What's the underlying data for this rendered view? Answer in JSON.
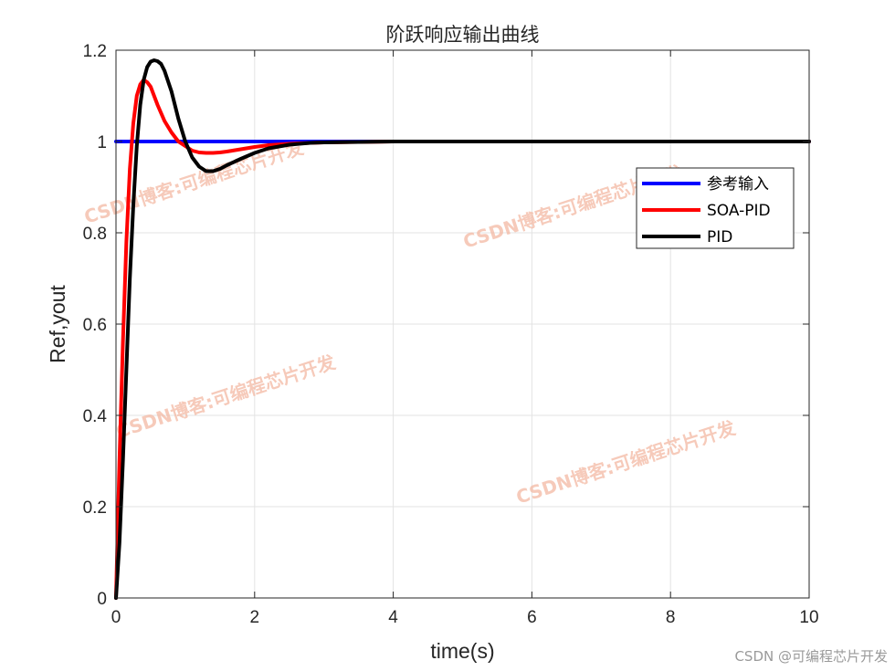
{
  "chart_data": {
    "type": "line",
    "title": "阶跃响应输出曲线",
    "xlabel": "time(s)",
    "ylabel": "Ref,yout",
    "xlim": [
      0,
      10
    ],
    "ylim": [
      0,
      1.2
    ],
    "xticks": [
      "0",
      "2",
      "4",
      "6",
      "8",
      "10"
    ],
    "yticks": [
      "0",
      "0.2",
      "0.4",
      "0.6",
      "0.8",
      "1",
      "1.2"
    ],
    "grid": true,
    "legend_position": "top-right",
    "series": [
      {
        "name": "参考输入",
        "color": "#0000ff",
        "x": [
          0,
          10
        ],
        "y": [
          1,
          1
        ]
      },
      {
        "name": "SOA-PID",
        "color": "#ff0000",
        "x": [
          0,
          0.05,
          0.1,
          0.15,
          0.2,
          0.25,
          0.3,
          0.35,
          0.4,
          0.45,
          0.5,
          0.55,
          0.6,
          0.7,
          0.8,
          0.9,
          1.0,
          1.1,
          1.2,
          1.3,
          1.4,
          1.5,
          1.6,
          1.8,
          2.0,
          2.2,
          2.5,
          2.8,
          3.0,
          3.5,
          4.0,
          5.0,
          6.0,
          7.0,
          8.0,
          9.0,
          10.0
        ],
        "y": [
          0,
          0.3,
          0.56,
          0.78,
          0.94,
          1.04,
          1.1,
          1.125,
          1.135,
          1.13,
          1.12,
          1.1,
          1.08,
          1.045,
          1.02,
          1.0,
          0.99,
          0.98,
          0.976,
          0.975,
          0.975,
          0.976,
          0.978,
          0.983,
          0.988,
          0.992,
          0.995,
          0.997,
          0.998,
          0.999,
          1.0,
          1.0,
          1.0,
          1.0,
          1.0,
          1.0,
          1.0
        ]
      },
      {
        "name": "PID",
        "color": "#000000",
        "x": [
          0,
          0.05,
          0.1,
          0.15,
          0.2,
          0.25,
          0.3,
          0.35,
          0.4,
          0.45,
          0.5,
          0.55,
          0.6,
          0.65,
          0.7,
          0.8,
          0.9,
          1.0,
          1.1,
          1.2,
          1.3,
          1.4,
          1.5,
          1.6,
          1.8,
          2.0,
          2.2,
          2.5,
          2.8,
          3.0,
          3.5,
          4.0,
          5.0,
          6.0,
          7.0,
          8.0,
          9.0,
          10.0
        ],
        "y": [
          0,
          0.12,
          0.3,
          0.5,
          0.7,
          0.86,
          0.99,
          1.08,
          1.135,
          1.163,
          1.175,
          1.178,
          1.176,
          1.17,
          1.155,
          1.11,
          1.05,
          1.0,
          0.965,
          0.945,
          0.935,
          0.935,
          0.94,
          0.948,
          0.962,
          0.975,
          0.985,
          0.993,
          0.997,
          0.998,
          0.999,
          1.0,
          1.0,
          1.0,
          1.0,
          1.0,
          1.0,
          1.0
        ]
      }
    ]
  },
  "watermarks": [
    "CSDN博客:可编程芯片开发",
    "CSDN博客:可编程芯片开发",
    "CSDN博客:可编程芯片开发",
    "CSDN博客:可编程芯片开发"
  ],
  "footer_watermark": "CSDN @可编程芯片开发"
}
